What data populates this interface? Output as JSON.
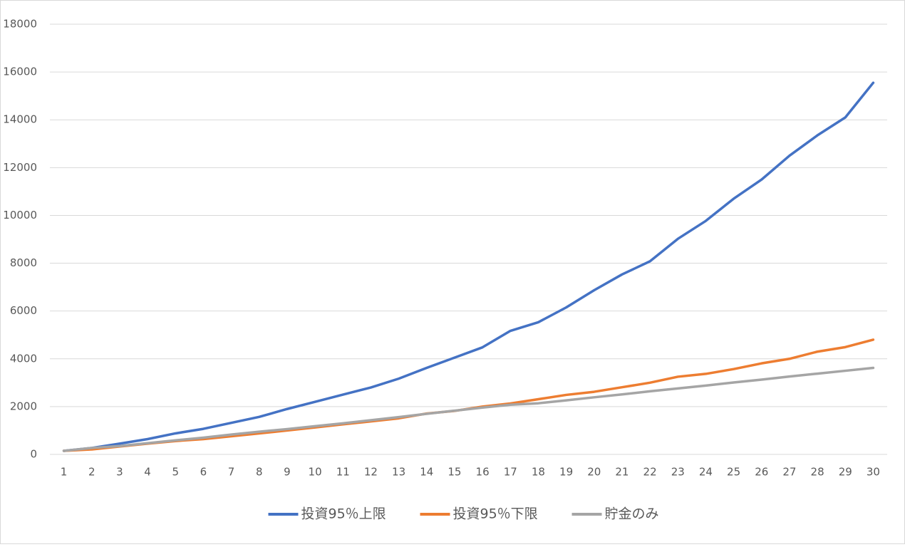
{
  "chart_data": {
    "type": "line",
    "categories": [
      "1",
      "2",
      "3",
      "4",
      "5",
      "6",
      "7",
      "8",
      "9",
      "10",
      "11",
      "12",
      "13",
      "14",
      "15",
      "16",
      "17",
      "18",
      "19",
      "20",
      "21",
      "22",
      "23",
      "24",
      "25",
      "26",
      "27",
      "28",
      "29",
      "30"
    ],
    "series": [
      {
        "name": "投資95％上限",
        "color": "#4472c4",
        "values": [
          150,
          270,
          450,
          640,
          880,
          1070,
          1320,
          1570,
          1900,
          2200,
          2500,
          2800,
          3170,
          3620,
          4050,
          4480,
          5170,
          5530,
          6150,
          6870,
          7530,
          8080,
          9020,
          9770,
          10700,
          11500,
          12500,
          13350,
          14100,
          15550
        ]
      },
      {
        "name": "投資95％下限",
        "color": "#ed7d31",
        "values": [
          150,
          210,
          330,
          450,
          560,
          640,
          760,
          880,
          1000,
          1130,
          1260,
          1380,
          1510,
          1710,
          1820,
          2000,
          2130,
          2310,
          2490,
          2620,
          2810,
          3000,
          3250,
          3370,
          3570,
          3810,
          4000,
          4300,
          4490,
          4800
        ]
      },
      {
        "name": "貯金のみ",
        "color": "#a5a5a5",
        "values": [
          150,
          270,
          350,
          470,
          590,
          700,
          830,
          950,
          1060,
          1180,
          1300,
          1430,
          1560,
          1700,
          1830,
          1960,
          2080,
          2140,
          2260,
          2390,
          2510,
          2640,
          2760,
          2880,
          3010,
          3130,
          3260,
          3380,
          3500,
          3620
        ]
      }
    ],
    "ylim": [
      0,
      18000
    ],
    "yticks": [
      0,
      2000,
      4000,
      6000,
      8000,
      10000,
      12000,
      14000,
      16000,
      18000
    ],
    "grid": true,
    "legend": "bottom"
  }
}
